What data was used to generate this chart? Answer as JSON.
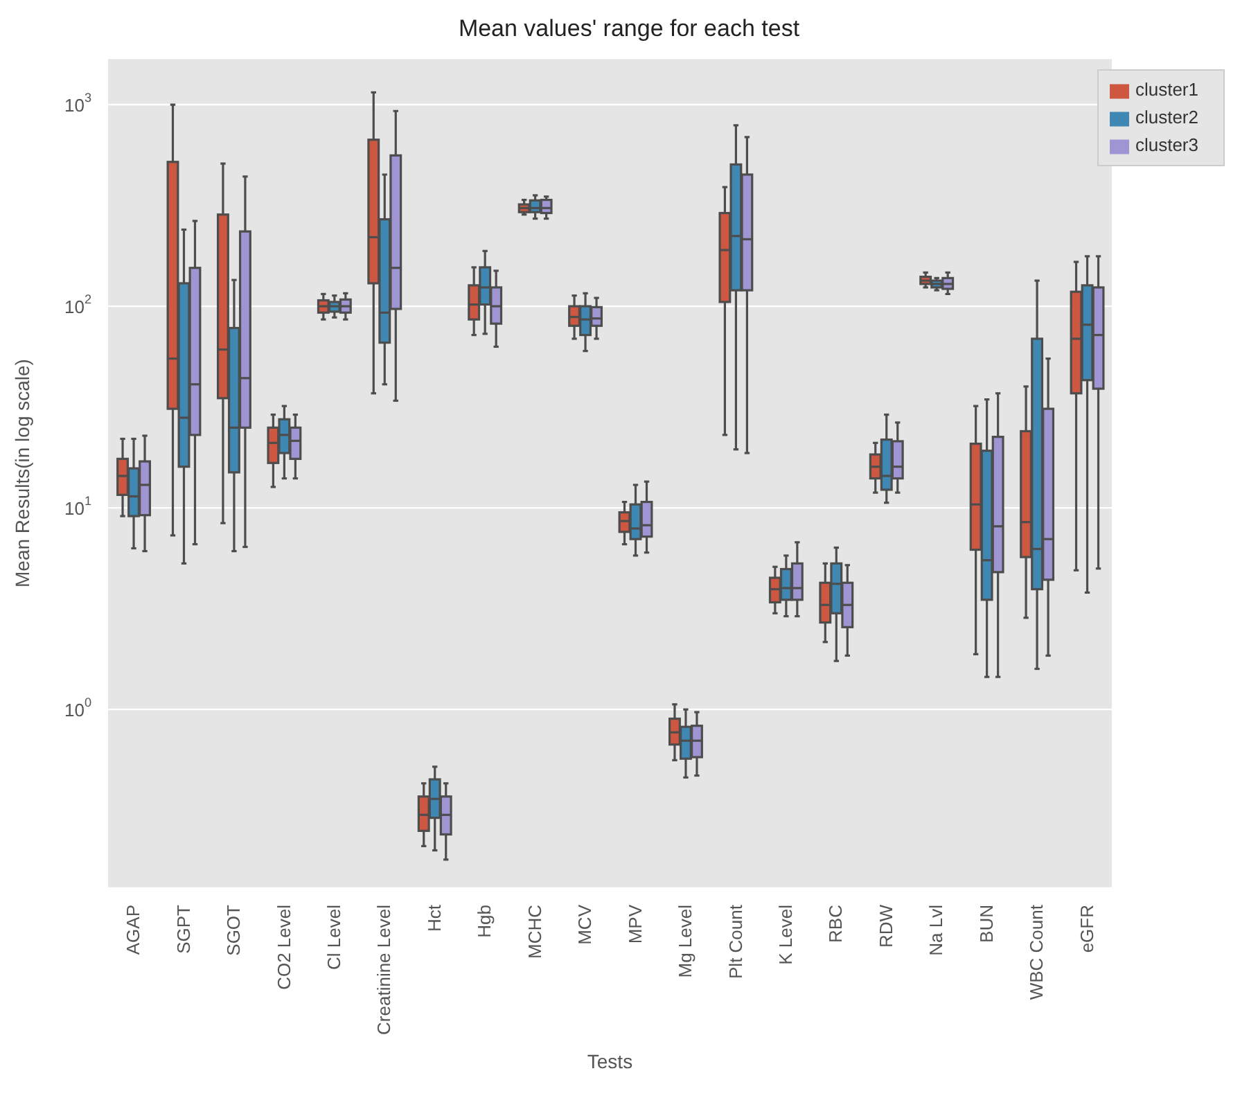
{
  "chart_data": {
    "type": "box",
    "title": "Mean values' range for each test",
    "xlabel": "Tests",
    "ylabel": "Mean Results(in log scale)",
    "log": "y",
    "grid": "y",
    "legend": "top right",
    "categories": [
      "AGAP",
      "SGPT",
      "SGOT",
      "CO2 Level",
      "Cl Level",
      "Creatinine Level",
      "Hct",
      "Hgb",
      "MCHC",
      "MCV",
      "MPV",
      "Mg Level",
      "Plt Count",
      "K Level",
      "RBC",
      "RDW",
      "Na Lvl",
      "BUN",
      "WBC Count",
      "eGFR"
    ],
    "ylim": [
      0.13,
      1700
    ],
    "yticks": [
      {
        "value": 1,
        "label": "10$^{0}$"
      },
      {
        "value": 10,
        "label": "10$^{1}$"
      },
      {
        "value": 100,
        "label": "10$^{2}$"
      },
      {
        "value": 1000,
        "label": "10$^{3}$"
      }
    ],
    "series": [
      {
        "name": "cluster1",
        "color": "#cd5741",
        "boxes": [
          {
            "low": 9.1,
            "q1": 11.6,
            "median": 14.4,
            "q3": 17.5,
            "high": 22
          },
          {
            "low": 7.3,
            "q1": 31,
            "median": 55,
            "q3": 520,
            "high": 1000
          },
          {
            "low": 8.4,
            "q1": 35,
            "median": 61,
            "q3": 285,
            "high": 510
          },
          {
            "low": 12.7,
            "q1": 16.7,
            "median": 21,
            "q3": 25,
            "high": 29
          },
          {
            "low": 86,
            "q1": 93,
            "median": 100,
            "q3": 107,
            "high": 115
          },
          {
            "low": 37,
            "q1": 130,
            "median": 220,
            "q3": 670,
            "high": 1150
          },
          {
            "low": 0.21,
            "q1": 0.25,
            "median": 0.3,
            "q3": 0.37,
            "high": 0.43
          },
          {
            "low": 72,
            "q1": 86,
            "median": 102,
            "q3": 127,
            "high": 156
          },
          {
            "low": 285,
            "q1": 293,
            "median": 307,
            "q3": 320,
            "high": 337
          },
          {
            "low": 69,
            "q1": 80,
            "median": 88.5,
            "q3": 100,
            "high": 113
          },
          {
            "low": 6.6,
            "q1": 7.6,
            "median": 8.6,
            "q3": 9.5,
            "high": 10.7
          },
          {
            "low": 0.56,
            "q1": 0.67,
            "median": 0.77,
            "q3": 0.9,
            "high": 1.06
          },
          {
            "low": 23,
            "q1": 105,
            "median": 190,
            "q3": 290,
            "high": 390
          },
          {
            "low": 3,
            "q1": 3.4,
            "median": 3.95,
            "q3": 4.5,
            "high": 5.1
          },
          {
            "low": 2.16,
            "q1": 2.7,
            "median": 3.3,
            "q3": 4.25,
            "high": 5.3
          },
          {
            "low": 11.9,
            "q1": 14,
            "median": 16,
            "q3": 18.4,
            "high": 21
          },
          {
            "low": 124,
            "q1": 129,
            "median": 134,
            "q3": 140,
            "high": 147
          },
          {
            "low": 1.88,
            "q1": 6.2,
            "median": 10.4,
            "q3": 20.8,
            "high": 32
          },
          {
            "low": 2.85,
            "q1": 5.7,
            "median": 8.5,
            "q3": 24,
            "high": 40
          },
          {
            "low": 4.9,
            "q1": 37,
            "median": 69,
            "q3": 118,
            "high": 166
          }
        ]
      },
      {
        "name": "cluster2",
        "color": "#3f88b3",
        "boxes": [
          {
            "low": 6.3,
            "q1": 9.1,
            "median": 11.4,
            "q3": 15.7,
            "high": 22
          },
          {
            "low": 5.3,
            "q1": 16,
            "median": 28,
            "q3": 130,
            "high": 240
          },
          {
            "low": 6.1,
            "q1": 15,
            "median": 25,
            "q3": 78,
            "high": 135
          },
          {
            "low": 14,
            "q1": 18.7,
            "median": 23,
            "q3": 27.5,
            "high": 32
          },
          {
            "low": 88,
            "q1": 94,
            "median": 100,
            "q3": 105,
            "high": 113
          },
          {
            "low": 41,
            "q1": 66,
            "median": 93,
            "q3": 270,
            "high": 450
          },
          {
            "low": 0.2,
            "q1": 0.29,
            "median": 0.36,
            "q3": 0.45,
            "high": 0.52
          },
          {
            "low": 73,
            "q1": 102,
            "median": 124,
            "q3": 156,
            "high": 188
          },
          {
            "low": 272,
            "q1": 293,
            "median": 307,
            "q3": 335,
            "high": 355
          },
          {
            "low": 60,
            "q1": 72,
            "median": 86,
            "q3": 100,
            "high": 116
          },
          {
            "low": 5.8,
            "q1": 7,
            "median": 7.9,
            "q3": 10.4,
            "high": 13
          },
          {
            "low": 0.46,
            "q1": 0.57,
            "median": 0.7,
            "q3": 0.82,
            "high": 1
          },
          {
            "low": 19.5,
            "q1": 120,
            "median": 223,
            "q3": 505,
            "high": 790
          },
          {
            "low": 2.9,
            "q1": 3.5,
            "median": 4,
            "q3": 4.97,
            "high": 5.8
          },
          {
            "low": 1.74,
            "q1": 3,
            "median": 4.2,
            "q3": 5.3,
            "high": 6.35
          },
          {
            "low": 10.6,
            "q1": 12.3,
            "median": 14.4,
            "q3": 21.8,
            "high": 29
          },
          {
            "low": 120,
            "q1": 124,
            "median": 129,
            "q3": 134,
            "high": 138
          },
          {
            "low": 1.45,
            "q1": 3.5,
            "median": 5.5,
            "q3": 19.2,
            "high": 34.5
          },
          {
            "low": 1.59,
            "q1": 3.95,
            "median": 6.25,
            "q3": 69,
            "high": 134
          },
          {
            "low": 3.8,
            "q1": 43,
            "median": 81,
            "q3": 127,
            "high": 177
          }
        ]
      },
      {
        "name": "cluster3",
        "color": "#a095d3",
        "boxes": [
          {
            "low": 6.1,
            "q1": 9.2,
            "median": 13,
            "q3": 17,
            "high": 22.8
          },
          {
            "low": 6.6,
            "q1": 23,
            "median": 41,
            "q3": 155,
            "high": 265
          },
          {
            "low": 6.4,
            "q1": 25,
            "median": 44,
            "q3": 235,
            "high": 440
          },
          {
            "low": 14,
            "q1": 17.5,
            "median": 21.5,
            "q3": 25,
            "high": 29
          },
          {
            "low": 86,
            "q1": 93,
            "median": 100,
            "q3": 108,
            "high": 116
          },
          {
            "low": 34,
            "q1": 97,
            "median": 155,
            "q3": 560,
            "high": 930
          },
          {
            "low": 0.18,
            "q1": 0.24,
            "median": 0.3,
            "q3": 0.37,
            "high": 0.43
          },
          {
            "low": 63,
            "q1": 82,
            "median": 100,
            "q3": 124,
            "high": 150
          },
          {
            "low": 272,
            "q1": 290,
            "median": 307,
            "q3": 337,
            "high": 350
          },
          {
            "low": 69,
            "q1": 80,
            "median": 87,
            "q3": 99,
            "high": 110
          },
          {
            "low": 6,
            "q1": 7.2,
            "median": 8.2,
            "q3": 10.7,
            "high": 13.5
          },
          {
            "low": 0.47,
            "q1": 0.58,
            "median": 0.7,
            "q3": 0.83,
            "high": 0.97
          },
          {
            "low": 18.7,
            "q1": 120,
            "median": 215,
            "q3": 450,
            "high": 690
          },
          {
            "low": 2.9,
            "q1": 3.5,
            "median": 4,
            "q3": 5.3,
            "high": 6.75
          },
          {
            "low": 1.85,
            "q1": 2.56,
            "median": 3.3,
            "q3": 4.25,
            "high": 5.2
          },
          {
            "low": 11.9,
            "q1": 14,
            "median": 16,
            "q3": 21.4,
            "high": 26.5
          },
          {
            "low": 115,
            "q1": 122,
            "median": 129,
            "q3": 138,
            "high": 147
          },
          {
            "low": 1.45,
            "q1": 4.8,
            "median": 8.1,
            "q3": 22.5,
            "high": 37
          },
          {
            "low": 1.85,
            "q1": 4.4,
            "median": 7,
            "q3": 31,
            "high": 55
          },
          {
            "low": 5,
            "q1": 39,
            "median": 72,
            "q3": 124,
            "high": 177
          }
        ]
      }
    ]
  }
}
